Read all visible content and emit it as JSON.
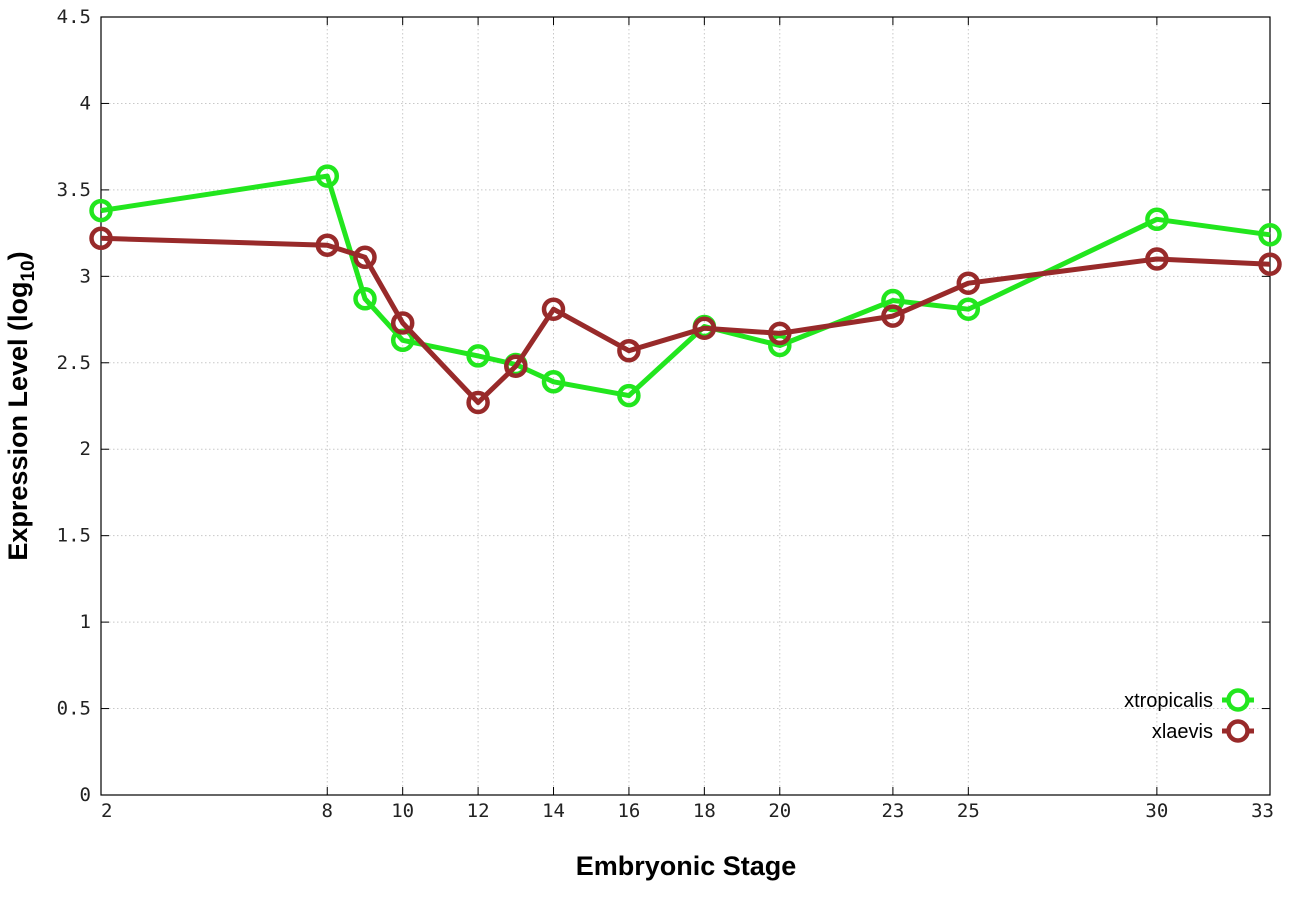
{
  "chart_data": {
    "type": "line",
    "title": "",
    "xlabel": "Embryonic Stage",
    "ylabel_main": "Expression Level (log",
    "ylabel_sub": "10",
    "ylabel_close": ")",
    "x": [
      2,
      8,
      9,
      10,
      12,
      13,
      14,
      16,
      18,
      20,
      23,
      25,
      30,
      33
    ],
    "x_ticks": [
      2,
      8,
      10,
      12,
      14,
      16,
      18,
      20,
      23,
      25,
      30,
      33
    ],
    "x_tick_labels": [
      "2",
      "8",
      "10",
      "12",
      "14",
      "16",
      "18",
      "20",
      "23",
      "25",
      "30",
      "33"
    ],
    "y_ticks": [
      0,
      0.5,
      1,
      1.5,
      2,
      2.5,
      3,
      3.5,
      4,
      4.5
    ],
    "y_tick_labels": [
      "0",
      "0.5",
      "1",
      "1.5",
      "2",
      "2.5",
      "3",
      "3.5",
      "4",
      "4.5"
    ],
    "xlim": [
      2,
      33
    ],
    "ylim": [
      0,
      4.5
    ],
    "grid": true,
    "legend_position": "bottom-right",
    "series": [
      {
        "name": "xtropicalis",
        "color": "#22e61e",
        "values": [
          3.38,
          3.58,
          2.87,
          2.63,
          2.54,
          2.49,
          2.39,
          2.31,
          2.71,
          2.6,
          2.86,
          2.81,
          3.33,
          3.24
        ]
      },
      {
        "name": "xlaevis",
        "color": "#982a2a",
        "values": [
          3.22,
          3.18,
          3.11,
          2.73,
          2.27,
          2.48,
          2.81,
          2.57,
          2.7,
          2.67,
          2.77,
          2.96,
          3.1,
          3.07
        ]
      }
    ]
  }
}
